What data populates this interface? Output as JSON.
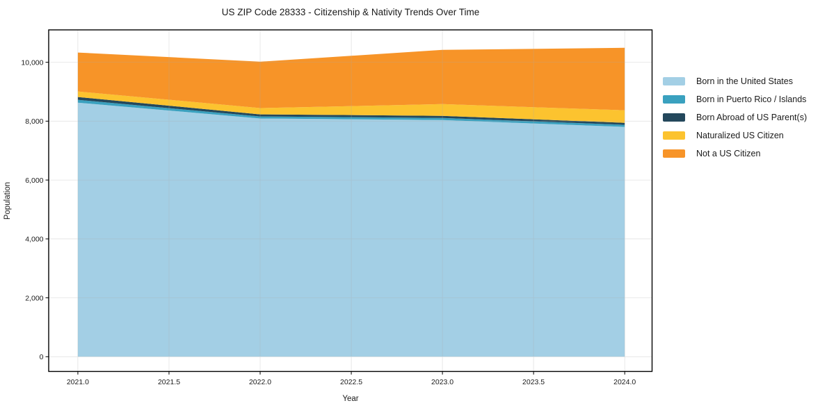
{
  "chart_data": {
    "type": "area",
    "stacked": true,
    "title": "US ZIP Code 28333 - Citizenship & Nativity Trends Over Time",
    "xlabel": "Year",
    "ylabel": "Population",
    "x": [
      2021,
      2022,
      2023,
      2024
    ],
    "series": [
      {
        "name": "Born in the United States",
        "color": "#a3cfe5",
        "values": [
          8630,
          8090,
          8040,
          7805
        ]
      },
      {
        "name": "Born in Puerto Rico / Islands",
        "color": "#3aa1bf",
        "values": [
          95,
          70,
          70,
          70
        ]
      },
      {
        "name": "Born Abroad of US Parent(s)",
        "color": "#24485c",
        "values": [
          95,
          70,
          70,
          70
        ]
      },
      {
        "name": "Naturalized US Citizen",
        "color": "#fcc32f",
        "values": [
          190,
          215,
          400,
          425
        ]
      },
      {
        "name": "Not a US Citizen",
        "color": "#f79428",
        "values": [
          1320,
          1575,
          1840,
          2120
        ]
      }
    ],
    "stacked_totals": [
      10330,
      10020,
      10420,
      10490
    ],
    "x_ticks": [
      2021.0,
      2021.5,
      2022.0,
      2022.5,
      2023.0,
      2023.5,
      2024.0
    ],
    "x_tick_labels": [
      "2021.0",
      "2021.5",
      "2022.0",
      "2022.5",
      "2023.0",
      "2023.5",
      "2024.0"
    ],
    "y_ticks": [
      0,
      2000,
      4000,
      6000,
      8000,
      10000
    ],
    "y_tick_labels": [
      "0",
      "2,000",
      "4,000",
      "6,000",
      "8,000",
      "10,000"
    ],
    "xlim": [
      2020.84,
      2024.15
    ],
    "ylim": [
      -500,
      11100
    ],
    "grid": "on-top-faint",
    "legend_position": "right",
    "colors": {
      "spine": "#000000",
      "grid": "#aaaaaa",
      "background": "#ffffff",
      "text": "#1a1a1a"
    }
  }
}
